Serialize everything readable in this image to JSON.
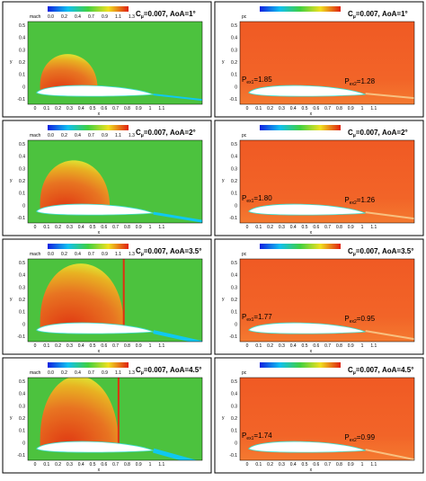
{
  "colorbars": {
    "mach": {
      "label": "mach",
      "ticks": [
        "0.0",
        "0.2",
        "0.4",
        "0.7",
        "0.9",
        "1.1",
        "1.3"
      ]
    },
    "pc": {
      "label": "pc"
    }
  },
  "axes": {
    "x_label": "x",
    "y_label": "y",
    "xticks": [
      "0",
      "0.1",
      "0.2",
      "0.3",
      "0.4",
      "0.5",
      "0.6",
      "0.7",
      "0.8",
      "0.9",
      "1",
      "1.1"
    ],
    "yticks": [
      "0.5",
      "0.4",
      "0.3",
      "0.2",
      "0.1",
      "0",
      "-0.1"
    ]
  },
  "rows": [
    {
      "title": {
        "c": "C",
        "sub": "μ",
        "rest": "=0.007, AoA=1°"
      },
      "p1": {
        "p": "P",
        "sub": "ex1",
        "rest": "=1.85"
      },
      "p2": {
        "p": "P",
        "sub": "ex2",
        "rest": "=1.28"
      }
    },
    {
      "title": {
        "c": "C",
        "sub": "μ",
        "rest": "=0.007, AoA=2°"
      },
      "p1": {
        "p": "P",
        "sub": "ex1",
        "rest": "=1.80"
      },
      "p2": {
        "p": "P",
        "sub": "ex2",
        "rest": "=1.26"
      }
    },
    {
      "title": {
        "c": "C",
        "sub": "μ",
        "rest": "=0.007, AoA=3.5°"
      },
      "p1": {
        "p": "P",
        "sub": "ex1",
        "rest": "=1.77"
      },
      "p2": {
        "p": "P",
        "sub": "ex2",
        "rest": "=0.95"
      }
    },
    {
      "title": {
        "c": "C",
        "sub": "μ",
        "rest": "=0.007, AoA=4.5°"
      },
      "p1": {
        "p": "P",
        "sub": "ex1",
        "rest": "=1.74"
      },
      "p2": {
        "p": "P",
        "sub": "ex2",
        "rest": "=0.99"
      }
    }
  ]
}
